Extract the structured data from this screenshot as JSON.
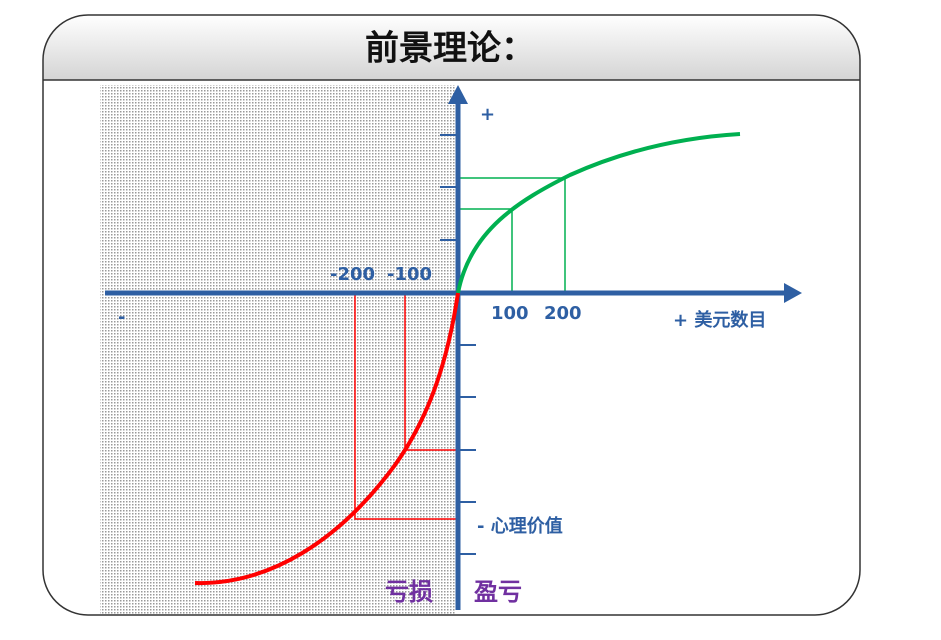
{
  "header": {
    "title": "前景理论："
  },
  "axes": {
    "y_plus": "+",
    "x_minus": "-",
    "x_label": "+ 美元数目",
    "y_label": "- 心理价值"
  },
  "x_labels": {
    "neg_200": "-200",
    "neg_100": "-100",
    "pos_100": "100",
    "pos_200": "200"
  },
  "regions": {
    "loss": "亏损",
    "gain": "盈亏"
  }
}
